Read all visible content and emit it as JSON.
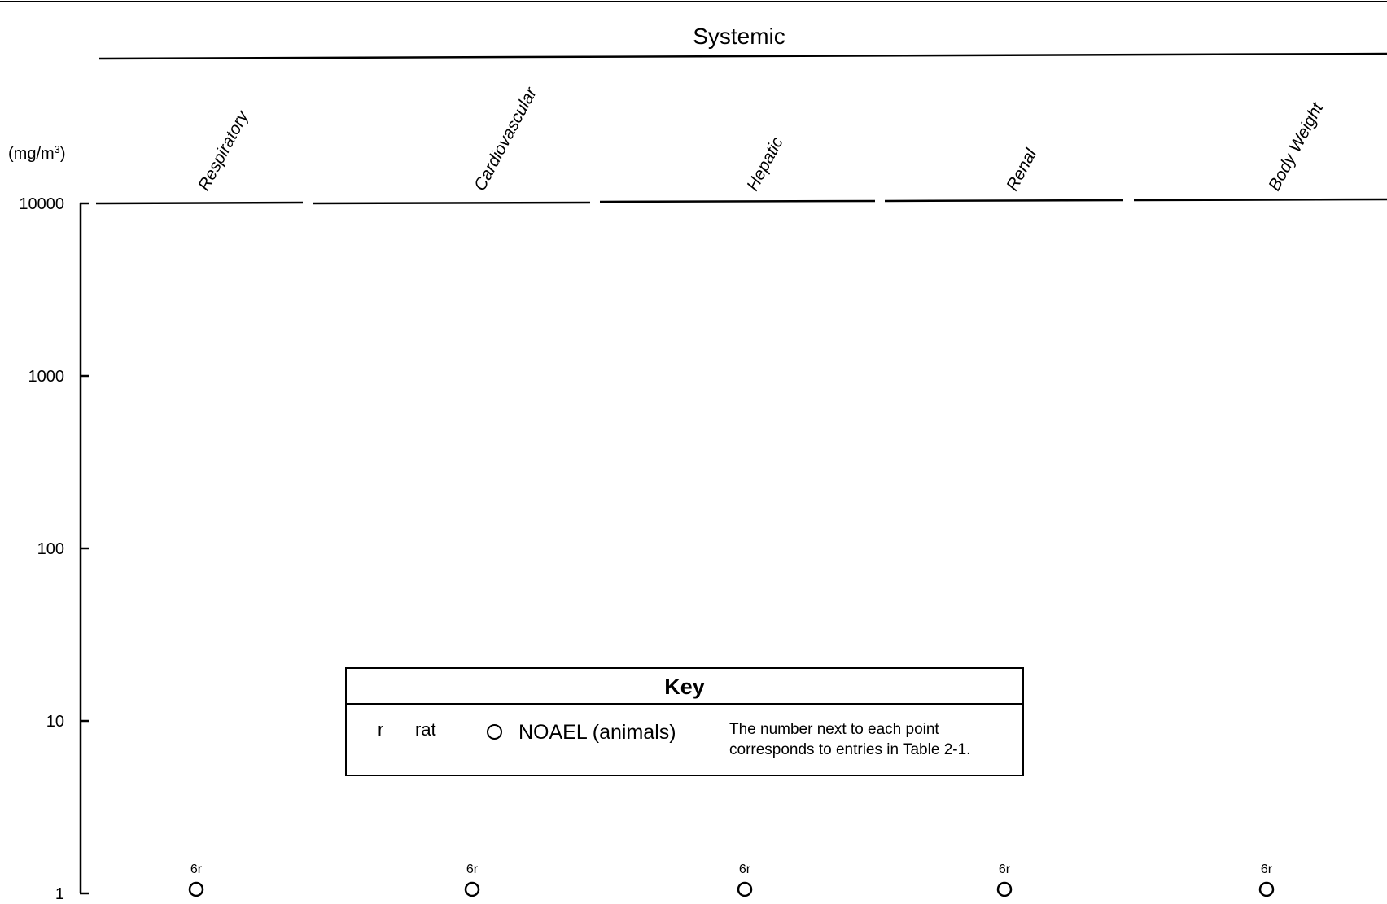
{
  "chart_data": {
    "type": "scatter",
    "title": "Systemic",
    "ylabel": "(mg/m3)",
    "yscale": "log",
    "ylim": [
      1,
      10000
    ],
    "yticks": [
      "10000",
      "1000",
      "100",
      "10",
      "1"
    ],
    "categories": [
      "Respiratory",
      "Cardiovascular",
      "Hepatic",
      "Renal",
      "Body Weight"
    ],
    "series": [
      {
        "marker": "open-circle",
        "points": [
          {
            "category": "Respiratory",
            "y": 1,
            "label": "6r"
          },
          {
            "category": "Cardiovascular",
            "y": 1,
            "label": "6r"
          },
          {
            "category": "Hepatic",
            "y": 1,
            "label": "6r"
          },
          {
            "category": "Renal",
            "y": 1,
            "label": "6r"
          },
          {
            "category": "Body Weight",
            "y": 1,
            "label": "6r"
          }
        ]
      }
    ]
  },
  "key": {
    "title": "Key",
    "abbr": "r",
    "species": "rat",
    "marker_label": "NOAEL (animals)",
    "note": "The number next to each point corresponds to entries in Table 2-1."
  }
}
